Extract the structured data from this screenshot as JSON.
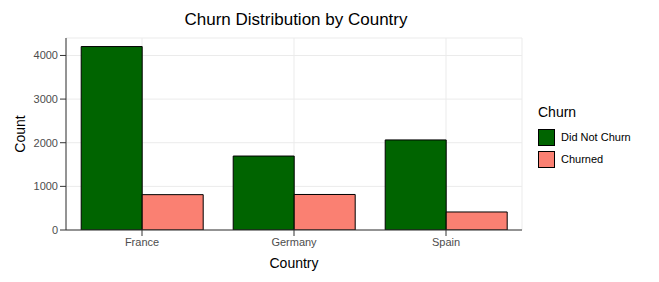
{
  "chart_data": {
    "type": "bar",
    "title": "Churn Distribution by Country",
    "x_label": "Country",
    "y_label": "Count",
    "legend_title": "Churn",
    "categories": [
      "France",
      "Germany",
      "Spain"
    ],
    "series": [
      {
        "name": "Did Not Churn",
        "color": "#006400",
        "values": [
          4204,
          1695,
          2064
        ]
      },
      {
        "name": "Churned",
        "color": "#FA8072",
        "values": [
          810,
          814,
          413
        ]
      }
    ],
    "ylim": [
      0,
      4400
    ],
    "yticks": [
      0,
      1000,
      2000,
      3000,
      4000
    ],
    "grid": true,
    "legend": "right"
  }
}
